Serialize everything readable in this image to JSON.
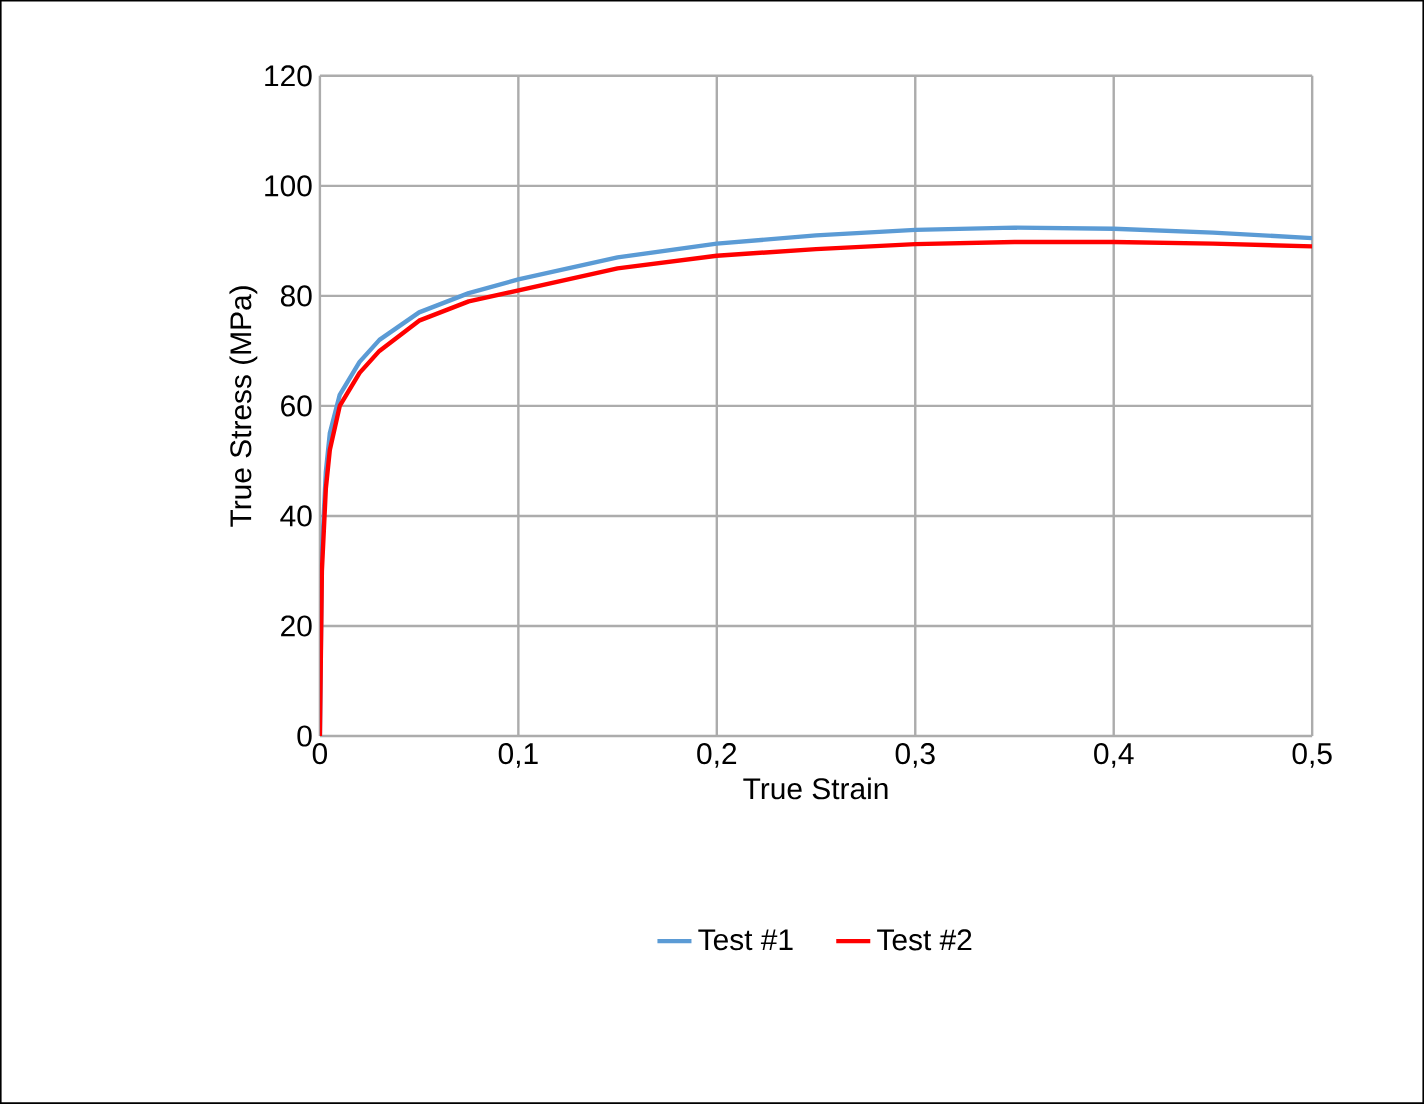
{
  "chart_data": {
    "type": "line",
    "xlabel": "True Strain",
    "ylabel": "True Stress (MPa)",
    "xlim": [
      0,
      0.5
    ],
    "ylim": [
      0,
      120
    ],
    "xticks": [
      0,
      {
        "value": 0.1,
        "label": "0,1"
      },
      {
        "value": 0.2,
        "label": "0,2"
      },
      {
        "value": 0.3,
        "label": "0,3"
      },
      {
        "value": 0.4,
        "label": "0,4"
      },
      {
        "value": 0.5,
        "label": "0,5"
      }
    ],
    "yticks": [
      0,
      20,
      40,
      60,
      80,
      100,
      120
    ],
    "grid": true,
    "legend": "bottom",
    "marker": "none",
    "line_style": "solid",
    "series": [
      {
        "name": "Test #1",
        "color": "#5b9bd5",
        "x": [
          0,
          0.001,
          0.003,
          0.005,
          0.01,
          0.02,
          0.03,
          0.05,
          0.075,
          0.1,
          0.15,
          0.2,
          0.25,
          0.3,
          0.35,
          0.4,
          0.45,
          0.5
        ],
        "values": [
          0,
          33,
          48,
          55,
          62,
          68,
          72,
          77,
          80.5,
          83,
          87,
          89.5,
          91,
          92,
          92.4,
          92.2,
          91.5,
          90.5
        ]
      },
      {
        "name": "Test #2",
        "color": "#ff0000",
        "x": [
          0,
          0.001,
          0.003,
          0.005,
          0.01,
          0.02,
          0.03,
          0.05,
          0.075,
          0.1,
          0.15,
          0.2,
          0.25,
          0.3,
          0.35,
          0.4,
          0.45,
          0.5
        ],
        "values": [
          0,
          30,
          45,
          52,
          60,
          66,
          70,
          75.5,
          79,
          81,
          85,
          87.3,
          88.5,
          89.4,
          89.8,
          89.8,
          89.5,
          89
        ]
      }
    ]
  }
}
